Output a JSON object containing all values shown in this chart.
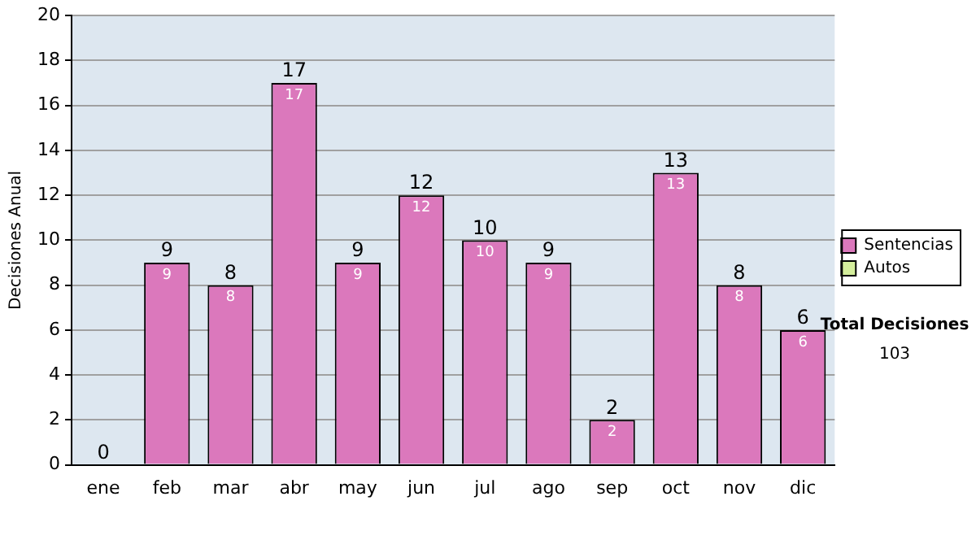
{
  "chart_data": {
    "type": "bar",
    "ylabel": "Decisiones Anual",
    "categories": [
      "ene",
      "feb",
      "mar",
      "abr",
      "may",
      "jun",
      "jul",
      "ago",
      "sep",
      "oct",
      "nov",
      "dic"
    ],
    "series": [
      {
        "name": "Sentencias",
        "color": "#db78bc",
        "values": [
          0,
          9,
          8,
          17,
          9,
          12,
          10,
          9,
          2,
          13,
          8,
          6
        ],
        "value_labels": [
          null,
          "9",
          "8",
          "17",
          "9",
          "12",
          "10",
          "9",
          "2",
          "13",
          "8",
          "6"
        ]
      },
      {
        "name": "Autos",
        "color": "#d4ee9c",
        "values": [
          0,
          0,
          0,
          0,
          0,
          0,
          0,
          0,
          0,
          0,
          0,
          0
        ]
      }
    ],
    "stacked": true,
    "totals": [
      "0",
      "9",
      "8",
      "17",
      "9",
      "12",
      "10",
      "9",
      "2",
      "13",
      "8",
      "6"
    ],
    "ylim": [
      0,
      20
    ],
    "yticks": [
      0,
      2,
      4,
      6,
      8,
      10,
      12,
      14,
      16,
      18,
      20
    ],
    "grid": "y",
    "legend": "right",
    "annotations": [
      "Total Decisiones",
      "103"
    ]
  }
}
